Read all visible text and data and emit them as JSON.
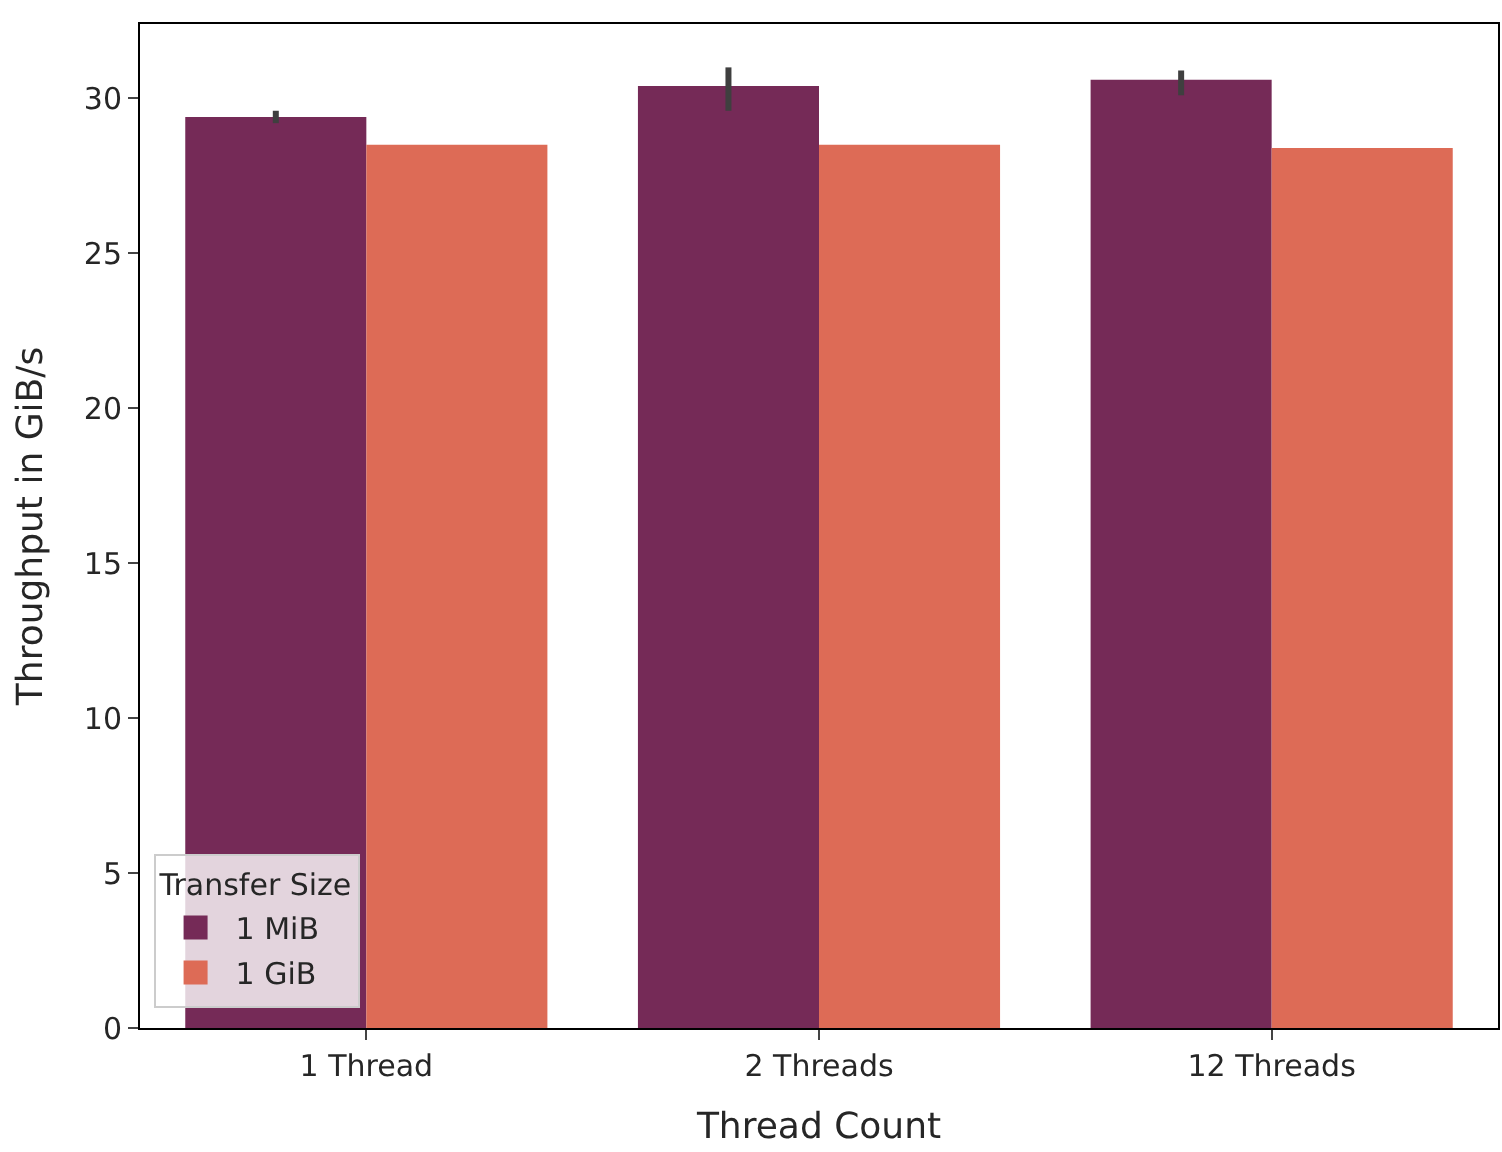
{
  "chart_data": {
    "type": "bar",
    "xlabel": "Thread Count",
    "ylabel": "Throughput in GiB/s",
    "legend_title": "Transfer Size",
    "legend": "bottom left",
    "categories": [
      "1 Thread",
      "2 Threads",
      "12 Threads"
    ],
    "series": [
      {
        "name": "1 MiB",
        "color": "#752a57",
        "values": [
          29.4,
          30.4,
          30.6
        ],
        "errors": [
          [
            29.2,
            29.6
          ],
          [
            29.6,
            31.0
          ],
          [
            30.1,
            30.9
          ]
        ]
      },
      {
        "name": "1 GiB",
        "color": "#dd6b56",
        "values": [
          28.5,
          28.5,
          28.4
        ]
      }
    ],
    "ylim": [
      0,
      32.4
    ],
    "yticks": [
      0,
      5,
      10,
      15,
      20,
      25,
      30
    ]
  }
}
